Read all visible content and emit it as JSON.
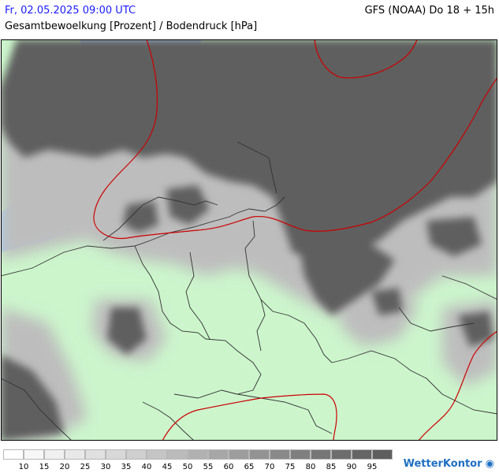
{
  "header": {
    "datetime": "Fr, 02.05.2025 09:00 UTC",
    "model": "GFS (NOAA) Do 18 + 15h",
    "parameter": "Gesamtbewoelkung [Prozent] / Bodendruck [hPa]"
  },
  "legend": {
    "ticks": [
      "10",
      "15",
      "20",
      "25",
      "30",
      "35",
      "40",
      "45",
      "50",
      "55",
      "60",
      "65",
      "70",
      "75",
      "80",
      "85",
      "90",
      "95"
    ],
    "colors": [
      "#ffffff",
      "#f7f7f7",
      "#f0f0f0",
      "#e8e8e8",
      "#e0e0e0",
      "#d8d8d8",
      "#cfcfcf",
      "#c5c5c5",
      "#bbbbbb",
      "#b1b1b1",
      "#a7a7a7",
      "#9d9d9d",
      "#939393",
      "#898989",
      "#7f7f7f",
      "#767676",
      "#6d6d6d",
      "#656565",
      "#5e5e5e"
    ]
  },
  "map": {
    "land_color": "#ccf5cc",
    "water_color": "#aad3f5",
    "cloud_color": "#5e5e5e",
    "isobar_color": "#cc0000",
    "border_color": "#333333"
  },
  "brand": {
    "name": "WetterKontor",
    "icon": "swirl-logo-icon"
  }
}
